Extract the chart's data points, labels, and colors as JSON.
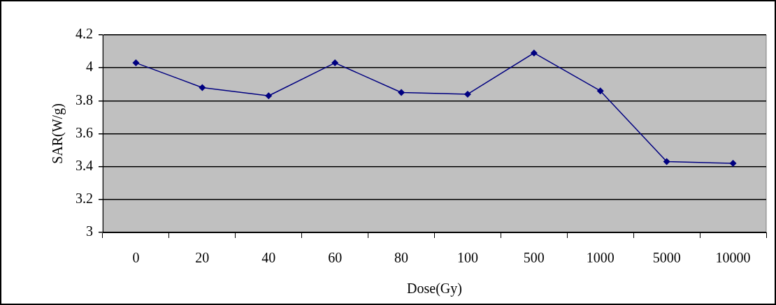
{
  "chart_data": {
    "type": "line",
    "xlabel": "Dose(Gy)",
    "ylabel": "SAR(W/g)",
    "categories": [
      "0",
      "20",
      "40",
      "60",
      "80",
      "100",
      "500",
      "1000",
      "5000",
      "10000"
    ],
    "series": [
      {
        "color": "#000080",
        "values": [
          4.03,
          3.88,
          3.83,
          4.03,
          3.85,
          3.84,
          4.09,
          3.86,
          3.43,
          3.42
        ]
      }
    ],
    "ylim": [
      3,
      4.2
    ],
    "yticks": [
      3,
      3.2,
      3.4,
      3.6,
      3.8,
      4,
      4.2
    ],
    "grid": "y",
    "legend": false,
    "marker": "diamond",
    "line_style": "solid"
  }
}
